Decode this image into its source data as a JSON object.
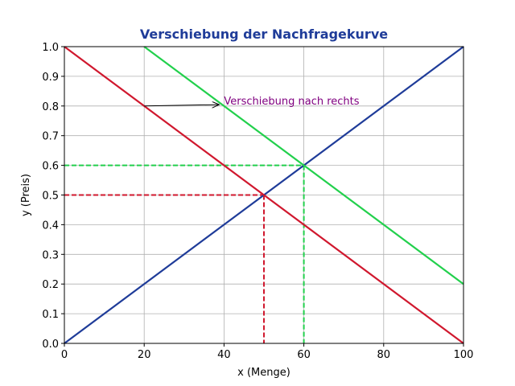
{
  "chart_data": {
    "type": "line",
    "title": "Verschiebung der Nachfragekurve",
    "xlabel": "x (Menge)",
    "ylabel": "y (Preis)",
    "xlim": [
      0,
      100
    ],
    "ylim": [
      0,
      1.0
    ],
    "x_ticks": [
      0,
      20,
      40,
      60,
      80,
      100
    ],
    "y_ticks": [
      0.0,
      0.1,
      0.2,
      0.3,
      0.4,
      0.5,
      0.6,
      0.7,
      0.8,
      0.9,
      1.0
    ],
    "x_tick_labels": [
      "0",
      "20",
      "40",
      "60",
      "80",
      "100"
    ],
    "y_tick_labels": [
      "0.0",
      "0.1",
      "0.2",
      "0.3",
      "0.4",
      "0.5",
      "0.6",
      "0.7",
      "0.8",
      "0.9",
      "1.0"
    ],
    "grid": true,
    "series": [
      {
        "key": "supply",
        "color": "#1f3c99",
        "x": [
          0,
          100
        ],
        "y": [
          0.0,
          1.0
        ],
        "style": "solid"
      },
      {
        "key": "demand",
        "color": "#d0182e",
        "x": [
          0,
          100
        ],
        "y": [
          1.0,
          0.0
        ],
        "style": "solid"
      },
      {
        "key": "demand_shifted",
        "color": "#22d04c",
        "x": [
          20,
          100
        ],
        "y": [
          1.0,
          0.2
        ],
        "style": "solid"
      }
    ],
    "equilibrium_lines": [
      {
        "key": "eq1",
        "color": "#d0182e",
        "x": 50,
        "y": 0.5
      },
      {
        "key": "eq2",
        "color": "#22d04c",
        "x": 60,
        "y": 0.6
      }
    ],
    "annotation": {
      "text": "Verschiebung nach rechts",
      "color": "#800080",
      "arrow_from": [
        20,
        0.8
      ],
      "arrow_to": [
        40,
        0.81
      ]
    },
    "colors": {
      "title": "#1f3c99",
      "grid": "#b0b0b0"
    }
  }
}
